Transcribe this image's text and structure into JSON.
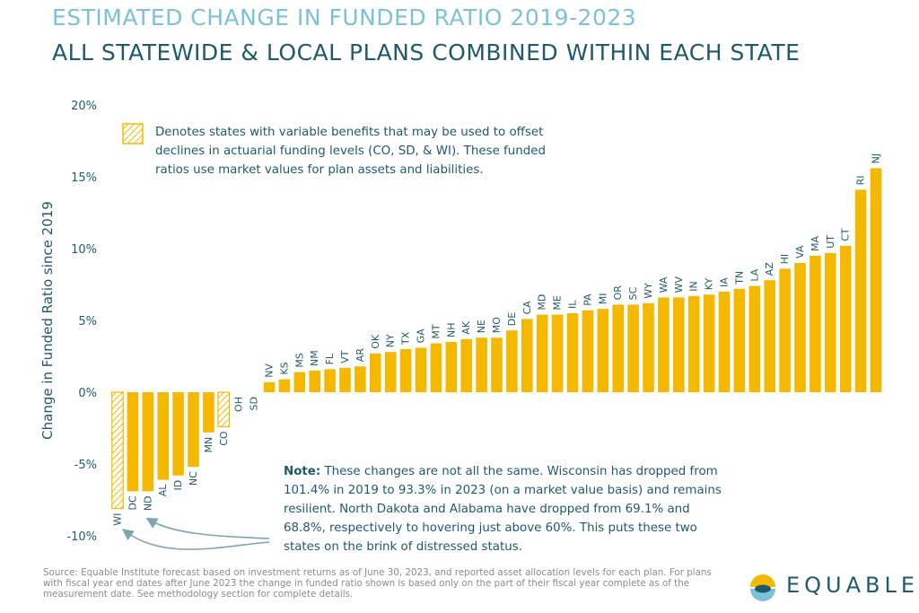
{
  "title": "ESTIMATED CHANGE IN FUNDED RATIO 2019-2023",
  "subtitle": "ALL STATEWIDE & LOCAL PLANS COMBINED WITHIN EACH STATE",
  "legend": {
    "text": "Denotes states with variable benefits that may be used to offset declines in actuarial funding levels (CO, SD, & WI). These funded ratios use market values for plan assets and liabilities."
  },
  "note": {
    "label": "Note:",
    "text": " These changes are not all the same. Wisconsin has dropped from 101.4% in 2019 to 93.3% in 2023 (on a market value basis) and remains resilient. North Dakota and Alabama have dropped from 69.1% and 68.8%, respectively to hovering just above 60%. This puts these two states on the brink of distressed status."
  },
  "source": "Source: Equable Institute forecast based on investment returns as of June 30, 2023, and reported asset allocation levels for each plan. For plans with fiscal year end dates after June 2023 the change in funded ratio shown is based only on the part of their fiscal year complete as of the measurement date. See methodology section for complete details.",
  "logo": {
    "text": "EQUABLE"
  },
  "colors": {
    "bar": "#f5b800",
    "hatch": "#f5b800",
    "axis_text": "#1f5a6b",
    "title_light": "#7cc2d6",
    "title_dark": "#1f5a6b",
    "arrow": "#7aa6b4"
  },
  "chart_data": {
    "type": "bar",
    "ylabel": "Change in Funded Ratio since 2019",
    "ylim": [
      -10,
      20
    ],
    "yticks": [
      -10,
      -5,
      0,
      5,
      10,
      15,
      20
    ],
    "ytick_labels": [
      "-10%",
      "-5%",
      "0%",
      "5%",
      "10%",
      "15%",
      "20%"
    ],
    "grid": false,
    "legend_placement": "top-left",
    "categories": [
      "WI",
      "DC",
      "ND",
      "AL",
      "ID",
      "NC",
      "MN",
      "CO",
      "OH",
      "SD",
      "NV",
      "KS",
      "MS",
      "NM",
      "FL",
      "VT",
      "AR",
      "OK",
      "NY",
      "TX",
      "GA",
      "MT",
      "NH",
      "AK",
      "NE",
      "MO",
      "DE",
      "CA",
      "MD",
      "ME",
      "IL",
      "PA",
      "MI",
      "OR",
      "SC",
      "WY",
      "WA",
      "WV",
      "IN",
      "KY",
      "IA",
      "TN",
      "LA",
      "AZ",
      "HI",
      "VA",
      "MA",
      "UT",
      "CT",
      "RI",
      "NJ"
    ],
    "values": [
      -8.1,
      -6.9,
      -6.9,
      -6.1,
      -5.8,
      -5.2,
      -2.8,
      -2.4,
      0,
      0,
      0.7,
      0.9,
      1.4,
      1.5,
      1.6,
      1.7,
      1.8,
      2.7,
      2.8,
      3.0,
      3.1,
      3.4,
      3.5,
      3.7,
      3.8,
      3.8,
      4.3,
      5.1,
      5.4,
      5.4,
      5.5,
      5.7,
      5.8,
      6.1,
      6.1,
      6.2,
      6.6,
      6.6,
      6.7,
      6.8,
      7.0,
      7.2,
      7.4,
      7.8,
      8.6,
      9.0,
      9.5,
      9.7,
      10.2,
      14.1,
      15.6
    ],
    "hatched": [
      "WI",
      "CO",
      "SD"
    ]
  }
}
